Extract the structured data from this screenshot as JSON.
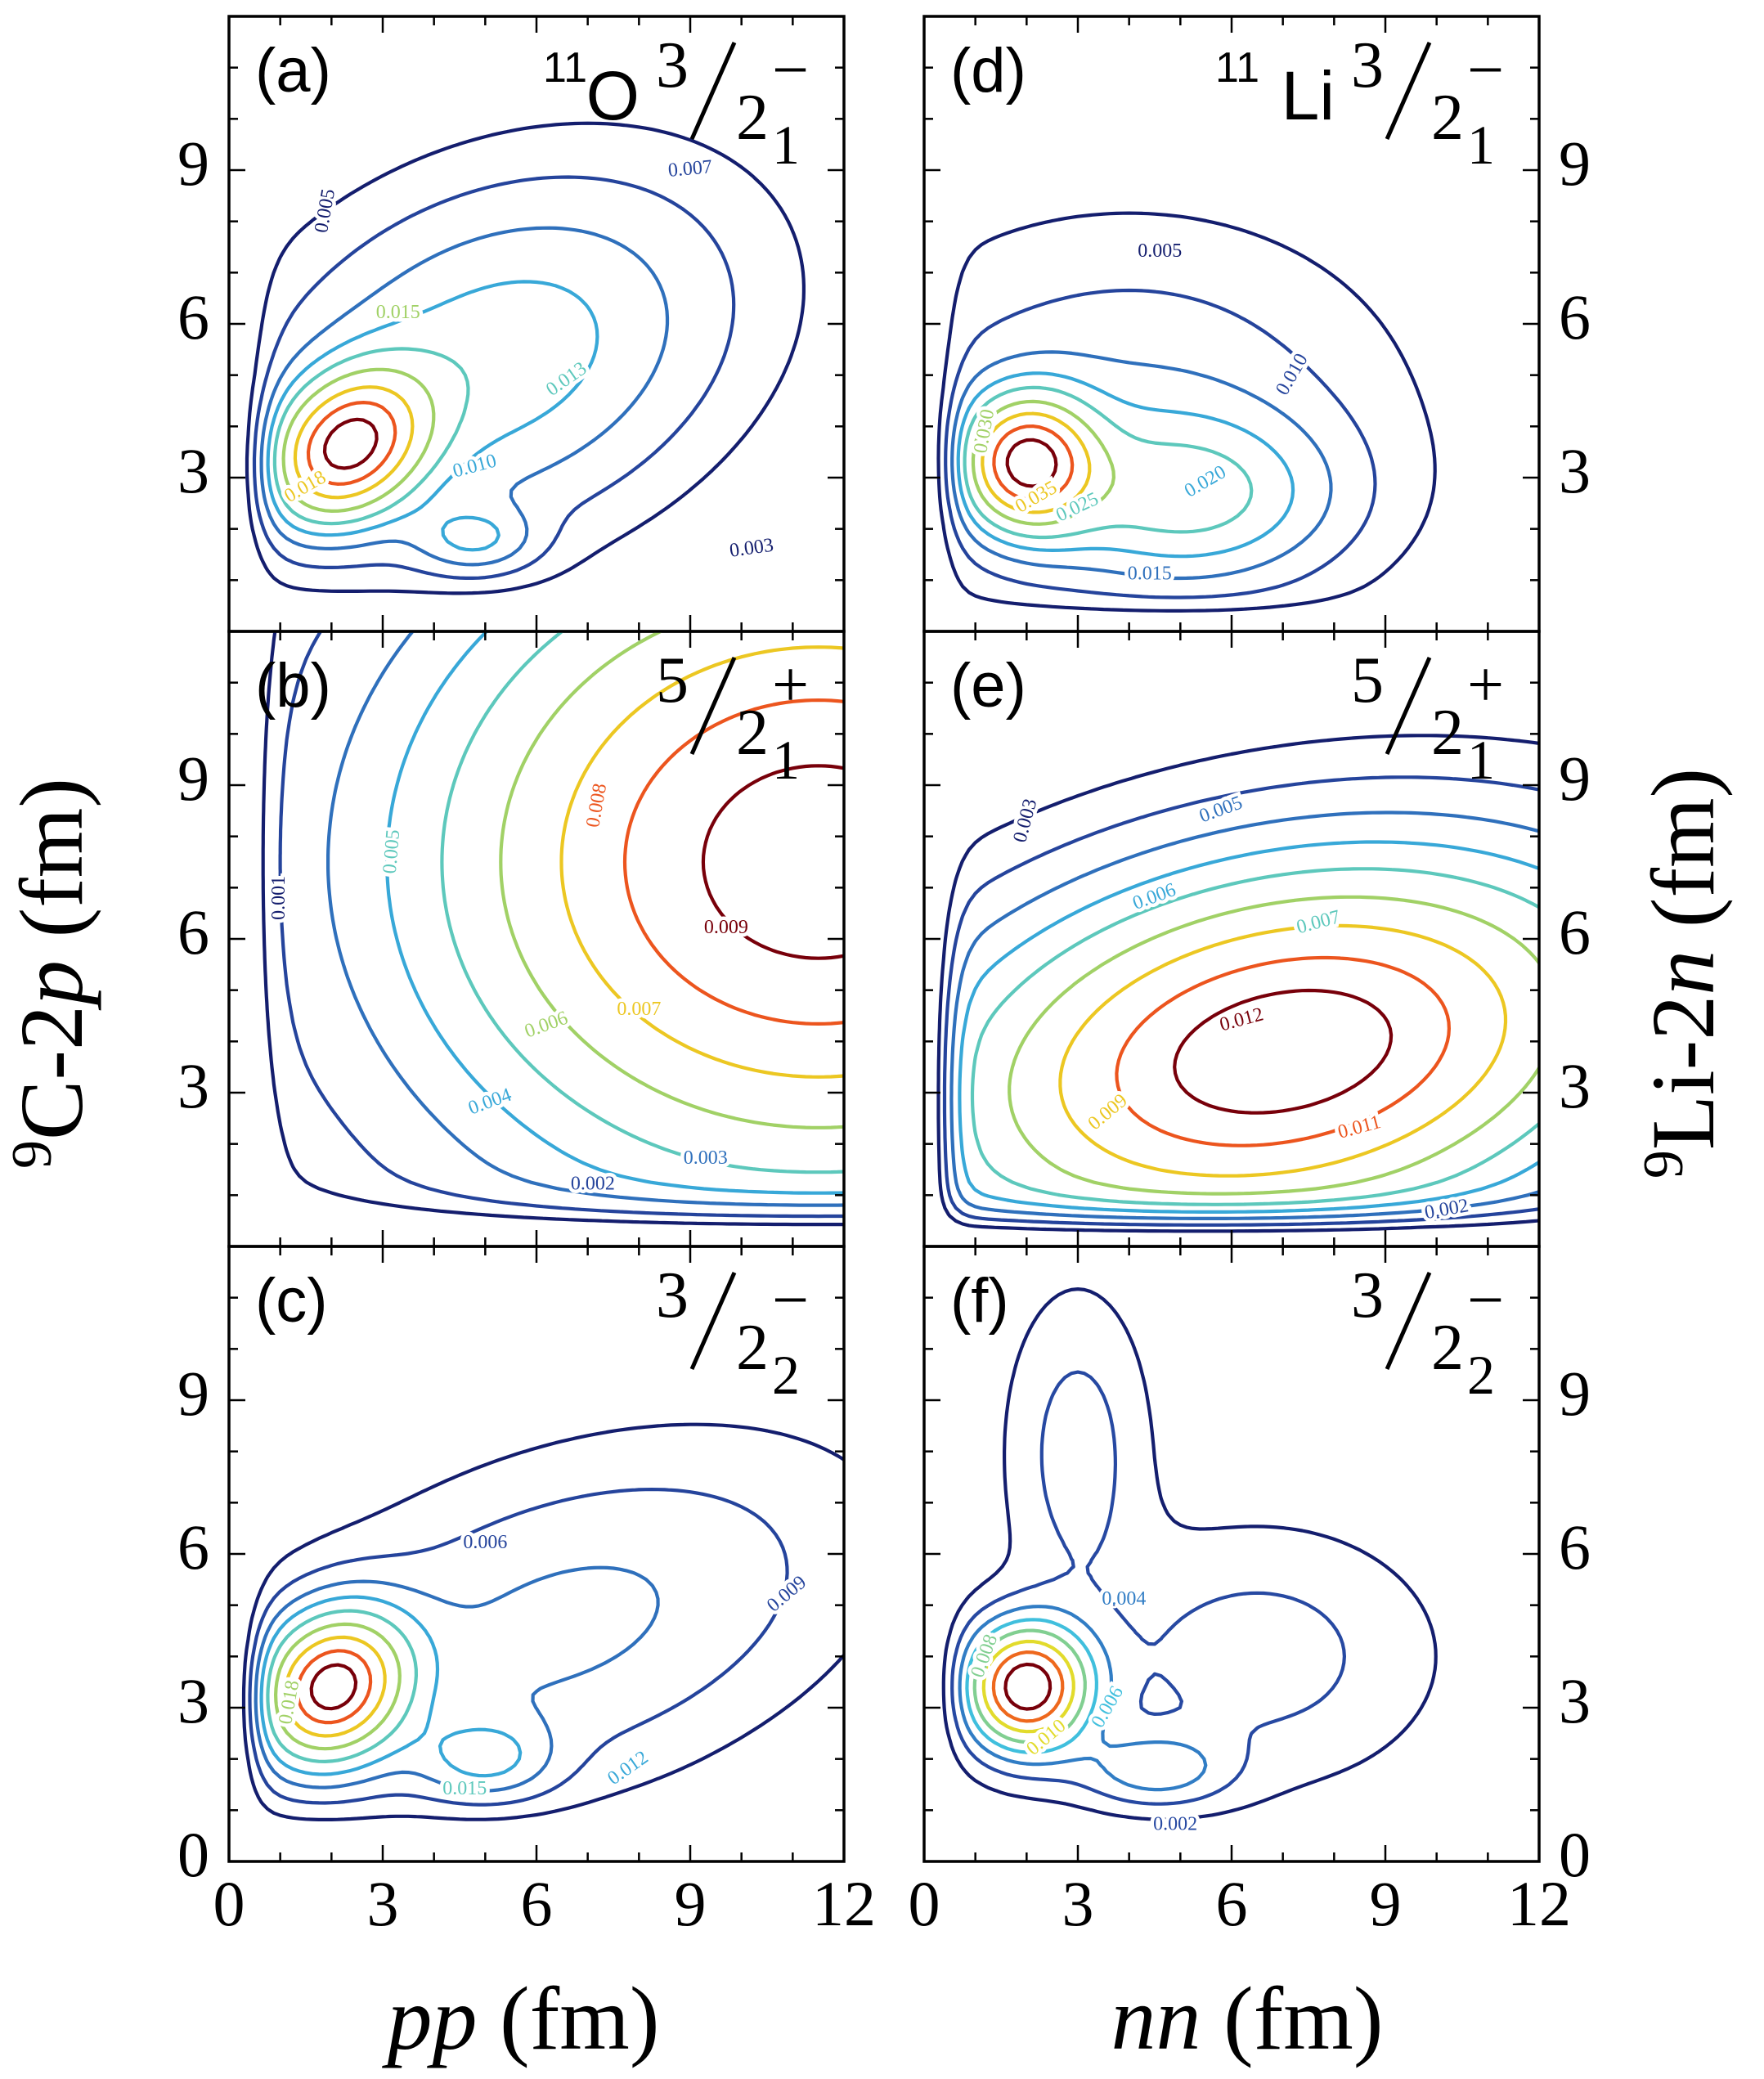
{
  "figure": {
    "left_ylabel": {
      "pre": "9",
      "main": "C-2",
      "var": "p",
      "post": " (fm)"
    },
    "right_ylabel": {
      "pre": "9",
      "main": "Li-2",
      "var": "n",
      "post": " (fm)"
    },
    "left_xlabel": {
      "var": "pp",
      "post": " (fm)"
    },
    "right_xlabel": {
      "var": "nn",
      "post": " (fm)"
    }
  },
  "chart_data": {
    "type": "contour",
    "xlim": [
      0,
      12
    ],
    "ylim": [
      0,
      12
    ],
    "x_ticks": [
      "0",
      "3",
      "6",
      "9",
      "12"
    ],
    "y_ticks": [
      "0",
      "3",
      "6",
      "9"
    ],
    "panels": [
      {
        "id": "a",
        "col": 0,
        "row": 0,
        "tag": "(a)",
        "title": {
          "nuc_mass": "11",
          "nuc_sym": "O",
          "j_num": "3",
          "j_den": "2",
          "j_sub": "1",
          "parity": "−"
        },
        "peaks": [
          {
            "x": 2.3,
            "y": 3.6,
            "sx": 1.0,
            "sy": 0.95,
            "rho": 0.25,
            "a": 1.0
          },
          {
            "x": 5.2,
            "y": 5.3,
            "sx": 3.0,
            "sy": 2.3,
            "rho": 0.3,
            "a": 0.36
          },
          {
            "x": 4.8,
            "y": 1.8,
            "sx": 0.8,
            "sy": 0.45,
            "rho": 0.0,
            "a": 0.22
          }
        ],
        "wall": {
          "x0": 0.7,
          "y0": 0.6
        },
        "levels": [
          0.04,
          0.09,
          0.16,
          0.24,
          0.33,
          0.45,
          0.6,
          0.75,
          0.9
        ],
        "contour_labels": [
          {
            "text": "0.007",
            "x": 9.0,
            "y": 9.0,
            "rot": -5,
            "level": 1
          },
          {
            "text": "0.005",
            "x": 1.9,
            "y": 8.2,
            "rot": -80,
            "level": 0
          },
          {
            "text": "0.015",
            "x": 3.3,
            "y": 6.2,
            "rot": 0,
            "level": 5
          },
          {
            "text": "0.013",
            "x": 6.6,
            "y": 4.9,
            "rot": -35,
            "level": 4
          },
          {
            "text": "0.010",
            "x": 4.8,
            "y": 3.2,
            "rot": -15,
            "level": 3
          },
          {
            "text": "0.003",
            "x": 10.2,
            "y": 1.6,
            "rot": -8,
            "level": 0
          },
          {
            "text": "0.018",
            "x": 1.5,
            "y": 2.8,
            "rot": -30,
            "level": 6
          }
        ]
      },
      {
        "id": "b",
        "col": 0,
        "row": 1,
        "tag": "(b)",
        "title": {
          "nuc_mass": "",
          "nuc_sym": "",
          "j_num": "5",
          "j_den": "2",
          "j_sub": "1",
          "parity": "+"
        },
        "peaks": [
          {
            "x": 11.5,
            "y": 7.5,
            "sx": 5.5,
            "sy": 4.6,
            "rho": 0.0,
            "a": 1.0
          }
        ],
        "wall": {
          "x0": 0.8,
          "y0": 0.8
        },
        "levels": [
          0.07,
          0.13,
          0.22,
          0.31,
          0.41,
          0.53,
          0.66,
          0.79,
          0.92
        ],
        "contour_labels": [
          {
            "text": "0.001",
            "x": 1.0,
            "y": 6.8,
            "rot": -90,
            "level": 0
          },
          {
            "text": "0.005",
            "x": 3.2,
            "y": 7.7,
            "rot": -85,
            "level": 4
          },
          {
            "text": "0.008",
            "x": 7.2,
            "y": 8.6,
            "rot": -80,
            "level": 7
          },
          {
            "text": "0.009",
            "x": 9.7,
            "y": 6.2,
            "rot": 0,
            "level": 8
          },
          {
            "text": "0.007",
            "x": 8.0,
            "y": 4.6,
            "rot": 0,
            "level": 6
          },
          {
            "text": "0.006",
            "x": 6.2,
            "y": 4.3,
            "rot": -20,
            "level": 5
          },
          {
            "text": "0.004",
            "x": 5.1,
            "y": 2.8,
            "rot": -20,
            "level": 3
          },
          {
            "text": "0.003",
            "x": 9.3,
            "y": 1.7,
            "rot": 0,
            "level": 2
          },
          {
            "text": "0.002",
            "x": 7.1,
            "y": 1.2,
            "rot": 0,
            "level": 1
          }
        ]
      },
      {
        "id": "c",
        "col": 0,
        "row": 2,
        "tag": "(c)",
        "title": {
          "nuc_mass": "",
          "nuc_sym": "",
          "j_num": "3",
          "j_den": "2",
          "j_sub": "2",
          "parity": "−"
        },
        "peaks": [
          {
            "x": 2.0,
            "y": 3.4,
            "sx": 1.0,
            "sy": 1.0,
            "rho": 0.15,
            "a": 1.0
          },
          {
            "x": 6.5,
            "y": 4.6,
            "sx": 3.8,
            "sy": 2.3,
            "rho": 0.4,
            "a": 0.24
          },
          {
            "x": 5.0,
            "y": 2.0,
            "sx": 0.9,
            "sy": 0.55,
            "rho": 0.0,
            "a": 0.25
          }
        ],
        "wall": {
          "x0": 0.6,
          "y0": 0.8
        },
        "levels": [
          0.05,
          0.11,
          0.19,
          0.28,
          0.39,
          0.52,
          0.66,
          0.8,
          0.92
        ],
        "contour_labels": [
          {
            "text": "0.006",
            "x": 5.0,
            "y": 6.2,
            "rot": 0,
            "level": 1
          },
          {
            "text": "0.009",
            "x": 10.9,
            "y": 5.2,
            "rot": -40,
            "level": 1
          },
          {
            "text": "0.012",
            "x": 7.8,
            "y": 1.8,
            "rot": -35,
            "level": 3
          },
          {
            "text": "0.015",
            "x": 4.6,
            "y": 1.4,
            "rot": 0,
            "level": 4
          },
          {
            "text": "0.018",
            "x": 1.2,
            "y": 3.1,
            "rot": -80,
            "level": 5
          }
        ]
      },
      {
        "id": "d",
        "col": 1,
        "row": 0,
        "tag": "(d)",
        "title": {
          "nuc_mass": "11",
          "nuc_sym": "Li",
          "j_num": "3",
          "j_den": "2",
          "j_sub": "1",
          "parity": "−"
        },
        "peaks": [
          {
            "x": 2.0,
            "y": 3.3,
            "sx": 0.9,
            "sy": 0.9,
            "rho": 0.0,
            "a": 1.0
          },
          {
            "x": 5.2,
            "y": 2.6,
            "sx": 1.9,
            "sy": 1.1,
            "rho": 0.0,
            "a": 0.4
          },
          {
            "x": 4.0,
            "y": 4.2,
            "sx": 3.2,
            "sy": 2.3,
            "rho": 0.0,
            "a": 0.22
          }
        ],
        "wall": {
          "x0": 0.6,
          "y0": 0.5
        },
        "levels": [
          0.04,
          0.1,
          0.18,
          0.27,
          0.37,
          0.5,
          0.63,
          0.77,
          0.9
        ],
        "contour_labels": [
          {
            "text": "0.005",
            "x": 4.6,
            "y": 7.4,
            "rot": 0,
            "level": 0
          },
          {
            "text": "0.010",
            "x": 7.2,
            "y": 5.0,
            "rot": -60,
            "level": 1
          },
          {
            "text": "0.020",
            "x": 5.5,
            "y": 2.9,
            "rot": -30,
            "level": 3
          },
          {
            "text": "0.025",
            "x": 3.0,
            "y": 2.4,
            "rot": -25,
            "level": 4
          },
          {
            "text": "0.015",
            "x": 4.4,
            "y": 1.1,
            "rot": 0,
            "level": 2
          },
          {
            "text": "0.030",
            "x": 1.2,
            "y": 3.9,
            "rot": -80,
            "level": 5
          },
          {
            "text": "0.035",
            "x": 2.2,
            "y": 2.6,
            "rot": -30,
            "level": 6
          }
        ]
      },
      {
        "id": "e",
        "col": 1,
        "row": 1,
        "tag": "(e)",
        "title": {
          "nuc_mass": "",
          "nuc_sym": "",
          "j_num": "5",
          "j_den": "2",
          "j_sub": "1",
          "parity": "+"
        },
        "peaks": [
          {
            "x": 7.0,
            "y": 3.8,
            "sx": 4.6,
            "sy": 2.6,
            "rho": 0.25,
            "a": 1.0
          }
        ],
        "wall": {
          "x0": 0.6,
          "y0": 0.7
        },
        "levels": [
          0.06,
          0.12,
          0.2,
          0.29,
          0.39,
          0.51,
          0.64,
          0.78,
          0.9
        ],
        "contour_labels": [
          {
            "text": "0.003",
            "x": 2.0,
            "y": 8.3,
            "rot": -75,
            "level": 0
          },
          {
            "text": "0.005",
            "x": 5.8,
            "y": 8.5,
            "rot": -20,
            "level": 2
          },
          {
            "text": "0.006",
            "x": 4.5,
            "y": 6.8,
            "rot": -20,
            "level": 3
          },
          {
            "text": "0.007",
            "x": 7.7,
            "y": 6.3,
            "rot": -15,
            "level": 4
          },
          {
            "text": "0.012",
            "x": 6.2,
            "y": 4.4,
            "rot": -15,
            "level": 8
          },
          {
            "text": "0.009",
            "x": 3.6,
            "y": 2.6,
            "rot": -40,
            "level": 6
          },
          {
            "text": "0.011",
            "x": 8.5,
            "y": 2.3,
            "rot": -15,
            "level": 7
          },
          {
            "text": "0.002",
            "x": 10.2,
            "y": 0.7,
            "rot": -10,
            "level": 1
          }
        ]
      },
      {
        "id": "f",
        "col": 1,
        "row": 2,
        "tag": "(f)",
        "title": {
          "nuc_mass": "",
          "nuc_sym": "",
          "j_num": "3",
          "j_den": "2",
          "j_sub": "2",
          "parity": "−"
        },
        "peaks": [
          {
            "x": 2.0,
            "y": 3.4,
            "sx": 0.85,
            "sy": 0.85,
            "rho": 0.0,
            "a": 1.0
          },
          {
            "x": 4.5,
            "y": 1.8,
            "sx": 1.0,
            "sy": 0.5,
            "rho": 0.0,
            "a": 0.28
          },
          {
            "x": 3.0,
            "y": 8.0,
            "sx": 0.9,
            "sy": 2.0,
            "rho": 0.0,
            "a": 0.18
          },
          {
            "x": 6.5,
            "y": 4.0,
            "sx": 2.2,
            "sy": 1.6,
            "rho": 0.0,
            "a": 0.18
          }
        ],
        "wall": {
          "x0": 0.6,
          "y0": 0.6
        },
        "levels": [
          0.05,
          0.13,
          0.23,
          0.34,
          0.46,
          0.6,
          0.74,
          0.88
        ],
        "contour_labels": [
          {
            "text": "0.004",
            "x": 3.9,
            "y": 5.1,
            "rot": 0,
            "level": 2
          },
          {
            "text": "0.006",
            "x": 3.6,
            "y": 3.0,
            "rot": -60,
            "level": 3
          },
          {
            "text": "0.008",
            "x": 1.2,
            "y": 4.0,
            "rot": -70,
            "level": 4
          },
          {
            "text": "0.010",
            "x": 2.4,
            "y": 2.4,
            "rot": -40,
            "level": 5
          },
          {
            "text": "0.002",
            "x": 4.9,
            "y": 0.7,
            "rot": 0,
            "level": 1
          }
        ]
      }
    ]
  }
}
